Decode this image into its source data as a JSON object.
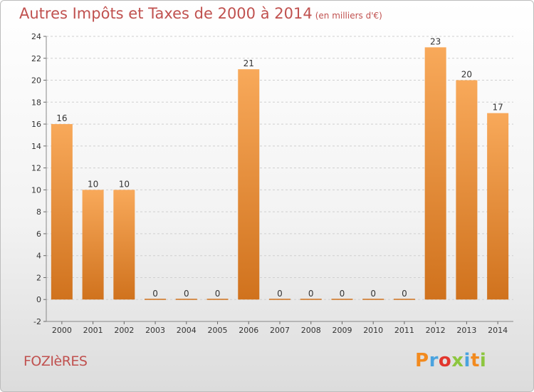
{
  "header": {
    "title": "Autres Impôts et Taxes de 2000 à 2014",
    "subtitle": "(en milliers d'€)"
  },
  "footer": {
    "commune": "FOZIèRES",
    "logo_text": "Proxiti",
    "logo_colors": [
      "#f28a1e",
      "#4aa3df",
      "#e2362d",
      "#8dc63f",
      "#4aa3df",
      "#f28a1e",
      "#8dc63f"
    ]
  },
  "colors": {
    "bar_top": "#f8a95a",
    "bar_bottom": "#d0721d",
    "title": "#c0514f"
  },
  "chart_data": {
    "type": "bar",
    "title": "Autres Impôts et Taxes de 2000 à 2014",
    "subtitle": "(en milliers d'€)",
    "categories": [
      "2000",
      "2001",
      "2002",
      "2003",
      "2004",
      "2005",
      "2006",
      "2007",
      "2008",
      "2009",
      "2010",
      "2011",
      "2012",
      "2013",
      "2014"
    ],
    "values": [
      16,
      10,
      10,
      0,
      0,
      0,
      21,
      0,
      0,
      0,
      0,
      0,
      23,
      20,
      17
    ],
    "data_labels": [
      "16",
      "10",
      "10",
      "0",
      "0",
      "0",
      "21",
      "0",
      "0",
      "0",
      "0",
      "0",
      "23",
      "20",
      "17"
    ],
    "yticks": [
      "-2",
      "0",
      "2",
      "4",
      "6",
      "8",
      "10",
      "12",
      "14",
      "16",
      "18",
      "20",
      "22",
      "24"
    ],
    "ylim": [
      -2,
      24
    ],
    "grid": "horizontal dashed",
    "xlabel": "",
    "ylabel": ""
  }
}
